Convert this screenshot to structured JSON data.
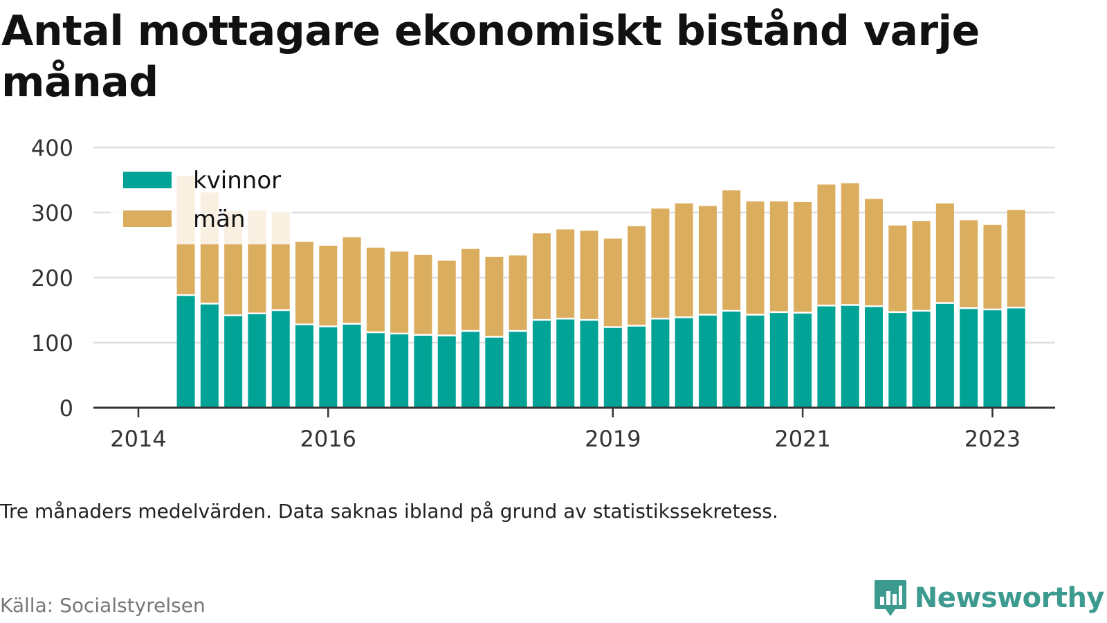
{
  "title": "Antal mottagare ekonomiskt bistånd varje månad",
  "note": "Tre månaders medelvärden. Data saknas ibland på grund av statistikssekretess.",
  "source": "Källa: Socialstyrelsen",
  "brand": {
    "name": "Newsworthy",
    "icon": "newsworthy-logo-icon",
    "color": "#3c9a8e"
  },
  "colors": {
    "kvinnor": "#00a396",
    "man": "#dbad5e",
    "grid": "#dddddd",
    "axis": "#333333"
  },
  "chart_data": {
    "type": "bar",
    "stacked": true,
    "title": "Antal mottagare ekonomiskt bistånd varje månad",
    "xlabel": "",
    "ylabel": "",
    "ylim": [
      0,
      400
    ],
    "yticks": [
      0,
      100,
      200,
      300,
      400
    ],
    "grid": true,
    "legend_position": "top-left",
    "xticks": [
      {
        "label": "2014",
        "x": "2014-01"
      },
      {
        "label": "2016",
        "x": "2016-01"
      },
      {
        "label": "2019",
        "x": "2019-01"
      },
      {
        "label": "2021",
        "x": "2021-01"
      },
      {
        "label": "2023",
        "x": "2023-01"
      }
    ],
    "x": [
      "2014-07",
      "2014-10",
      "2015-01",
      "2015-04",
      "2015-07",
      "2015-10",
      "2016-01",
      "2016-04",
      "2016-07",
      "2016-10",
      "2017-01",
      "2017-04",
      "2017-07",
      "2017-10",
      "2018-01",
      "2018-04",
      "2018-07",
      "2018-10",
      "2019-01",
      "2019-04",
      "2019-07",
      "2019-10",
      "2020-01",
      "2020-04",
      "2020-07",
      "2020-10",
      "2021-01",
      "2021-04",
      "2021-07",
      "2021-10",
      "2022-01",
      "2022-04",
      "2022-07",
      "2022-10",
      "2023-01",
      "2023-04"
    ],
    "series": [
      {
        "name": "kvinnor",
        "color": "#00a396",
        "values": [
          173,
          160,
          142,
          145,
          150,
          128,
          125,
          129,
          116,
          114,
          112,
          111,
          118,
          109,
          118,
          135,
          137,
          135,
          124,
          126,
          137,
          139,
          143,
          149,
          143,
          147,
          146,
          157,
          158,
          156,
          147,
          149,
          161,
          153,
          151,
          154
        ]
      },
      {
        "name": "män",
        "color": "#dbad5e",
        "values": [
          183,
          171,
          160,
          158,
          150,
          127,
          124,
          133,
          130,
          126,
          123,
          115,
          126,
          123,
          116,
          133,
          137,
          137,
          136,
          153,
          169,
          175,
          167,
          185,
          174,
          170,
          170,
          186,
          187,
          165,
          133,
          138,
          153,
          135,
          130,
          150
        ]
      }
    ]
  }
}
